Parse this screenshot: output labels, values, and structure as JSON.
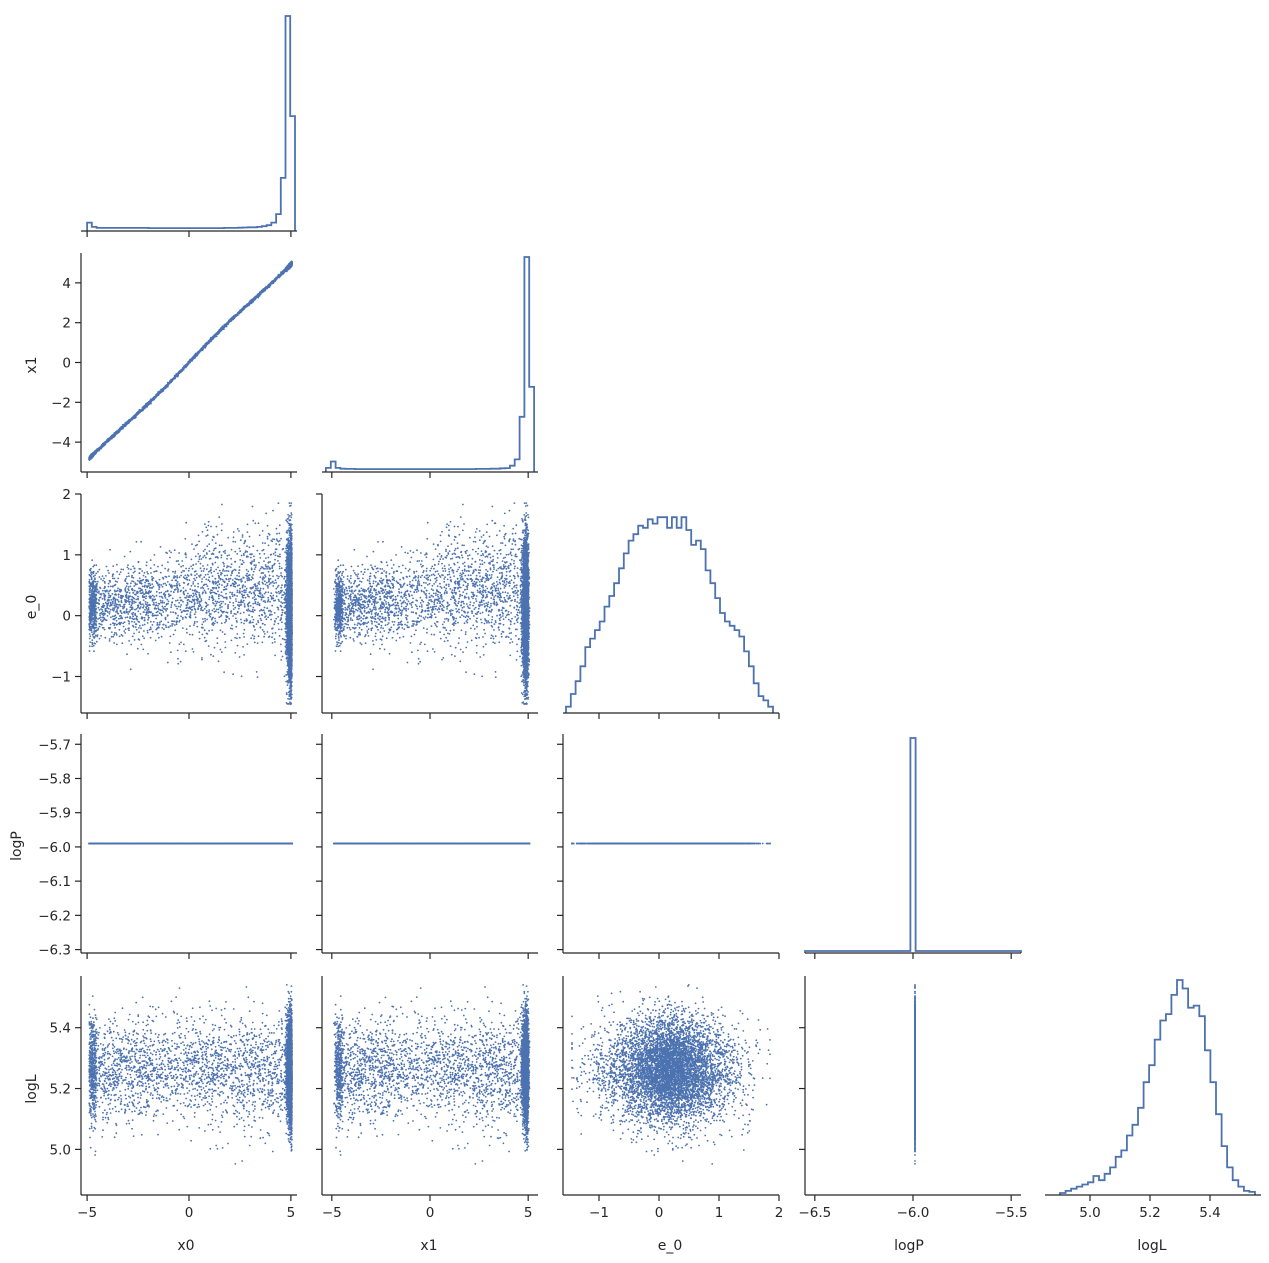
{
  "chart_data": {
    "type": "corner",
    "series_color": "#4c72b0",
    "grid": false,
    "variables": [
      {
        "name": "x0",
        "range": [
          -5.3,
          5.3
        ],
        "ticks": [
          -5,
          0,
          5
        ]
      },
      {
        "name": "x1",
        "range": [
          -5.5,
          5.5
        ],
        "ticks": [
          -4,
          -2,
          0,
          2,
          4
        ],
        "xticks": [
          -5,
          0,
          5
        ]
      },
      {
        "name": "e_0",
        "range": [
          -1.6,
          2.0
        ],
        "ticks": [
          -1,
          0,
          1,
          2
        ]
      },
      {
        "name": "logP",
        "range": [
          -6.31,
          -5.67
        ],
        "ticks": [
          -6.3,
          -6.2,
          -6.1,
          -6.0,
          -5.9,
          -5.8,
          -5.7
        ],
        "xticks": [
          -6.5,
          -6.0,
          -5.5
        ],
        "xrange": [
          -6.55,
          -5.45
        ]
      },
      {
        "name": "logL",
        "range": [
          4.85,
          5.57
        ],
        "ticks": [
          5.0,
          5.2,
          5.4
        ]
      }
    ],
    "tick_labels": {
      "x0_x": [
        "−5",
        "0",
        "5"
      ],
      "x1_x": [
        "−5",
        "0",
        "5"
      ],
      "e_0_x": [
        "−1",
        "0",
        "1",
        "2"
      ],
      "logP_x": [
        "−6.5",
        "−6.0",
        "−5.5"
      ],
      "logL_x": [
        "5.0",
        "5.2",
        "5.4"
      ],
      "x1_y": [
        "4",
        "2",
        "0",
        "−2",
        "−4"
      ],
      "e_0_y": [
        "2",
        "1",
        "0",
        "−1"
      ],
      "logP_y": [
        "−5.7",
        "−5.8",
        "−5.9",
        "−6.0",
        "−6.1",
        "−6.2",
        "−6.3"
      ],
      "logL_y": [
        "5.4",
        "5.2",
        "5.0"
      ]
    },
    "histograms": {
      "x0": {
        "bins": [
          -5.0,
          5.2
        ],
        "counts": [
          0.03,
          0.01,
          0.005,
          0.005,
          0.005,
          0.005,
          0.005,
          0.005,
          0.005,
          0.005,
          0.005,
          0.005,
          0.005,
          0.004,
          0.004,
          0.004,
          0.004,
          0.004,
          0.004,
          0.004,
          0.004,
          0.004,
          0.004,
          0.004,
          0.004,
          0.004,
          0.004,
          0.004,
          0.004,
          0.005,
          0.005,
          0.005,
          0.006,
          0.007,
          0.008,
          0.008,
          0.01,
          0.013,
          0.018,
          0.03,
          0.07,
          0.24,
          1.0,
          0.53
        ]
      },
      "x1": {
        "bins": [
          -5.3,
          5.3
        ],
        "counts": [
          0.01,
          0.04,
          0.01,
          0.006,
          0.005,
          0.005,
          0.004,
          0.004,
          0.004,
          0.004,
          0.004,
          0.004,
          0.004,
          0.004,
          0.004,
          0.004,
          0.004,
          0.004,
          0.004,
          0.004,
          0.004,
          0.004,
          0.004,
          0.004,
          0.004,
          0.004,
          0.004,
          0.004,
          0.004,
          0.004,
          0.004,
          0.005,
          0.005,
          0.005,
          0.006,
          0.006,
          0.008,
          0.009,
          0.02,
          0.05,
          0.25,
          1.0,
          0.39
        ]
      },
      "e_0": {
        "bins": [
          -1.55,
          1.9
        ],
        "counts": [
          0.02,
          0.08,
          0.14,
          0.21,
          0.3,
          0.34,
          0.38,
          0.42,
          0.49,
          0.54,
          0.6,
          0.67,
          0.74,
          0.8,
          0.83,
          0.87,
          0.86,
          0.9,
          0.88,
          0.91,
          0.91,
          0.86,
          0.91,
          0.86,
          0.91,
          0.85,
          0.78,
          0.8,
          0.76,
          0.66,
          0.6,
          0.53,
          0.46,
          0.42,
          0.4,
          0.38,
          0.35,
          0.28,
          0.21,
          0.13,
          0.07,
          0.05,
          0.02
        ]
      },
      "logP": {
        "bins": [
          -6.55,
          -5.45
        ],
        "counts": [
          0.0,
          0.0,
          0.0,
          0.0,
          0.0,
          0.0,
          0.0,
          0.0,
          0.0,
          0.0,
          0.0,
          0.0,
          0.0,
          0.0,
          0.0,
          0.0,
          0.0,
          0.0,
          0.0,
          0.0,
          1.0,
          0.0,
          0.0,
          0.0,
          0.0,
          0.0,
          0.0,
          0.0,
          0.0,
          0.0,
          0.0,
          0.0,
          0.0,
          0.0,
          0.0,
          0.0,
          0.0,
          0.0,
          0.0,
          0.0,
          0.0
        ]
      },
      "logL": {
        "bins": [
          4.9,
          5.55
        ],
        "counts": [
          0.0,
          0.01,
          0.02,
          0.03,
          0.04,
          0.05,
          0.08,
          0.06,
          0.09,
          0.12,
          0.17,
          0.2,
          0.27,
          0.32,
          0.4,
          0.52,
          0.6,
          0.72,
          0.81,
          0.84,
          0.93,
          1.0,
          0.96,
          0.87,
          0.88,
          0.83,
          0.67,
          0.52,
          0.37,
          0.22,
          0.12,
          0.06,
          0.03,
          0.01,
          0.005
        ]
      }
    },
    "scatter_description_points": 6000,
    "logP_constant": -5.99
  }
}
